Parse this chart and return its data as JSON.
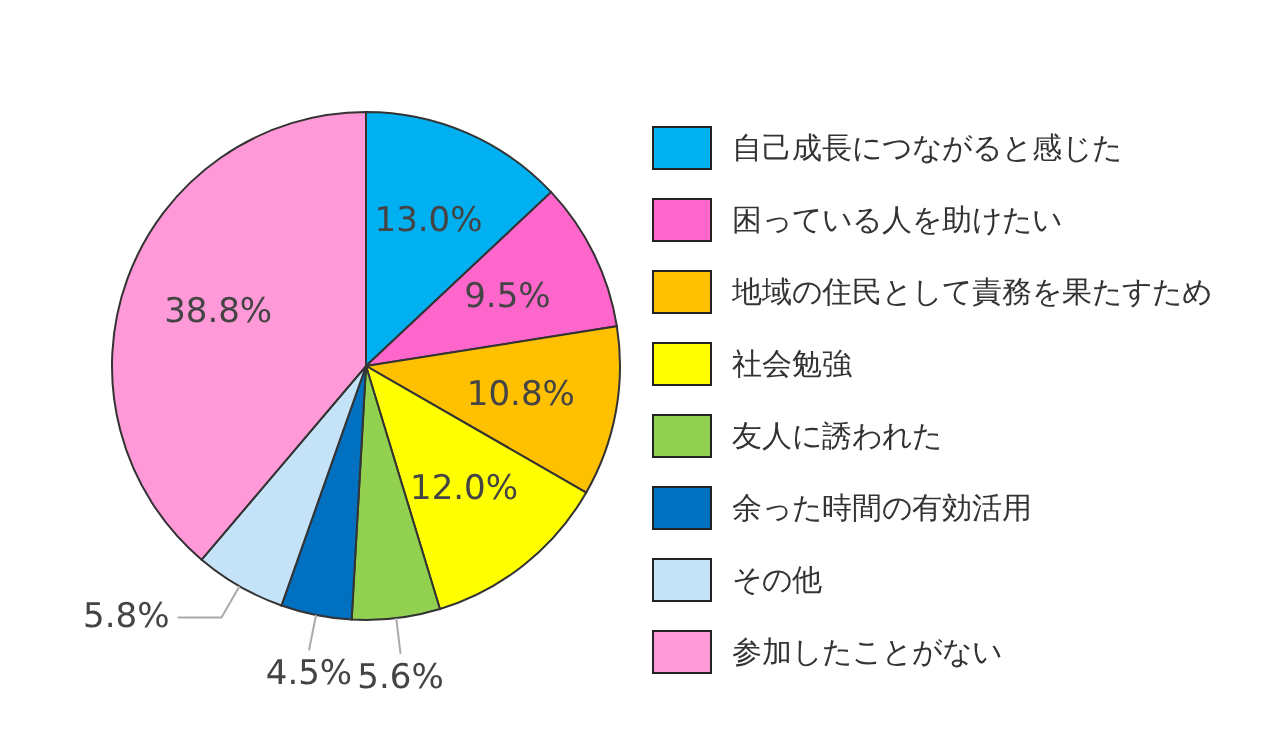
{
  "chart_data": {
    "type": "pie",
    "categories": [
      "自己成長につながると感じた",
      "困っている人を助けたい",
      "地域の住民として責務を果たすため",
      "社会勉強",
      "友人に誘われた",
      "余った時間の有効活用",
      "その他",
      "参加したことがない"
    ],
    "values": [
      13.0,
      9.5,
      10.8,
      12.0,
      5.6,
      4.5,
      5.8,
      38.8
    ],
    "value_labels": [
      "13.0%",
      "9.5%",
      "10.8%",
      "12.0%",
      "5.6%",
      "4.5%",
      "5.8%",
      "38.8%"
    ],
    "colors": [
      "#00b0f0",
      "#ff66cc",
      "#ffc000",
      "#ffff00",
      "#92d050",
      "#0070c0",
      "#c5e3f8",
      "#ff99d8"
    ],
    "legend": "right"
  }
}
